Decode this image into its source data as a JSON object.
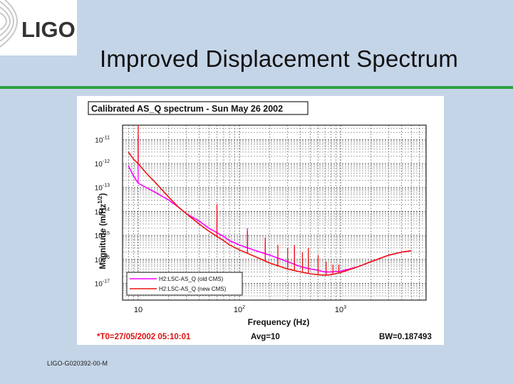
{
  "slide": {
    "logo_text": "LIGO",
    "title": "Improved Displacement Spectrum",
    "footer_id": "LIGO-G020392-00-M",
    "colors": {
      "background": "#c5d5e8",
      "accent_rule": "#2ea043"
    }
  },
  "chart_data": {
    "type": "line",
    "title": "Calibrated AS_Q spectrum - Sun May 26 2002",
    "xlabel": "Frequency (Hz)",
    "ylabel": "Magnitude (m/Hz",
    "ylabel_exponent": "1/2",
    "ylabel_close": ")",
    "x_scale": "log",
    "y_scale": "log",
    "xlim": [
      7,
      7000
    ],
    "ylim": [
      2e-18,
      4e-11
    ],
    "grid": true,
    "legend_position": "bottom-left",
    "x_ticks": [
      {
        "value": 10,
        "base": "10",
        "exp": ""
      },
      {
        "value": 100,
        "base": "10",
        "exp": "2"
      },
      {
        "value": 1000,
        "base": "10",
        "exp": "3"
      }
    ],
    "y_ticks": [
      {
        "value": 1e-11,
        "base": "10",
        "exp": "-11"
      },
      {
        "value": 1e-12,
        "base": "10",
        "exp": "-12"
      },
      {
        "value": 1e-13,
        "base": "10",
        "exp": "-13"
      },
      {
        "value": 1e-14,
        "base": "10",
        "exp": "-14"
      },
      {
        "value": 1e-15,
        "base": "10",
        "exp": "-15"
      },
      {
        "value": 1e-16,
        "base": "10",
        "exp": "-16"
      },
      {
        "value": 1e-17,
        "base": "10",
        "exp": "-17"
      }
    ],
    "footer": {
      "t0": "*T0=27/05/2002 05:10:01",
      "avg": "Avg=10",
      "bw": "BW=0.187493"
    },
    "series": [
      {
        "name": "H2:LSC-AS_Q (old CMS)",
        "color": "#ff00ff",
        "x": [
          8,
          9,
          10,
          12,
          15,
          20,
          25,
          30,
          40,
          50,
          60,
          70,
          80,
          100,
          150,
          200,
          300,
          400,
          500,
          600,
          700,
          800,
          1000,
          1500,
          2000,
          3000,
          4000,
          5000
        ],
        "y": [
          8e-13,
          3e-13,
          1.5e-13,
          1e-13,
          6e-14,
          3e-14,
          1.5e-14,
          8e-15,
          4e-15,
          2e-15,
          1.3e-15,
          9e-16,
          6e-16,
          4e-16,
          2.2e-16,
          1.5e-16,
          8e-17,
          5e-17,
          4e-17,
          3.5e-17,
          3e-17,
          3e-17,
          3.2e-17,
          5e-17,
          8e-17,
          1.5e-16,
          2e-16,
          2.3e-16
        ],
        "peaks": [
          {
            "x": 10,
            "y": 1.5e-11
          },
          {
            "x": 60,
            "y": 1e-14
          },
          {
            "x": 120,
            "y": 2e-15
          },
          {
            "x": 180,
            "y": 5e-16
          },
          {
            "x": 350,
            "y": 3e-16
          }
        ]
      },
      {
        "name": "H2:LSC-AS_Q (new CMS)",
        "color": "#ee1111",
        "x": [
          8,
          9,
          10,
          12,
          15,
          20,
          25,
          30,
          40,
          50,
          60,
          70,
          80,
          100,
          150,
          200,
          300,
          400,
          500,
          600,
          700,
          800,
          1000,
          1500,
          2000,
          3000,
          4000,
          5000
        ],
        "y": [
          3e-12,
          1.5e-12,
          1e-12,
          4e-13,
          1.5e-13,
          4e-14,
          1.5e-14,
          8e-15,
          3e-15,
          1.5e-15,
          9e-16,
          6e-16,
          4e-16,
          2.5e-16,
          1.2e-16,
          7e-17,
          4e-17,
          3e-17,
          2.5e-17,
          2.3e-17,
          2.2e-17,
          2.3e-17,
          2.8e-17,
          5e-17,
          8e-17,
          1.5e-16,
          2e-16,
          2.3e-16
        ],
        "peaks": [
          {
            "x": 10,
            "y": 4e-11
          },
          {
            "x": 60,
            "y": 2e-14
          },
          {
            "x": 120,
            "y": 1.5e-15
          },
          {
            "x": 180,
            "y": 8e-16
          },
          {
            "x": 240,
            "y": 4e-16
          },
          {
            "x": 300,
            "y": 3e-16
          },
          {
            "x": 350,
            "y": 4e-16
          },
          {
            "x": 420,
            "y": 2e-16
          },
          {
            "x": 480,
            "y": 3e-16
          },
          {
            "x": 600,
            "y": 1.5e-16
          },
          {
            "x": 720,
            "y": 8e-17
          },
          {
            "x": 840,
            "y": 6e-17
          },
          {
            "x": 960,
            "y": 6e-17
          }
        ]
      }
    ]
  }
}
